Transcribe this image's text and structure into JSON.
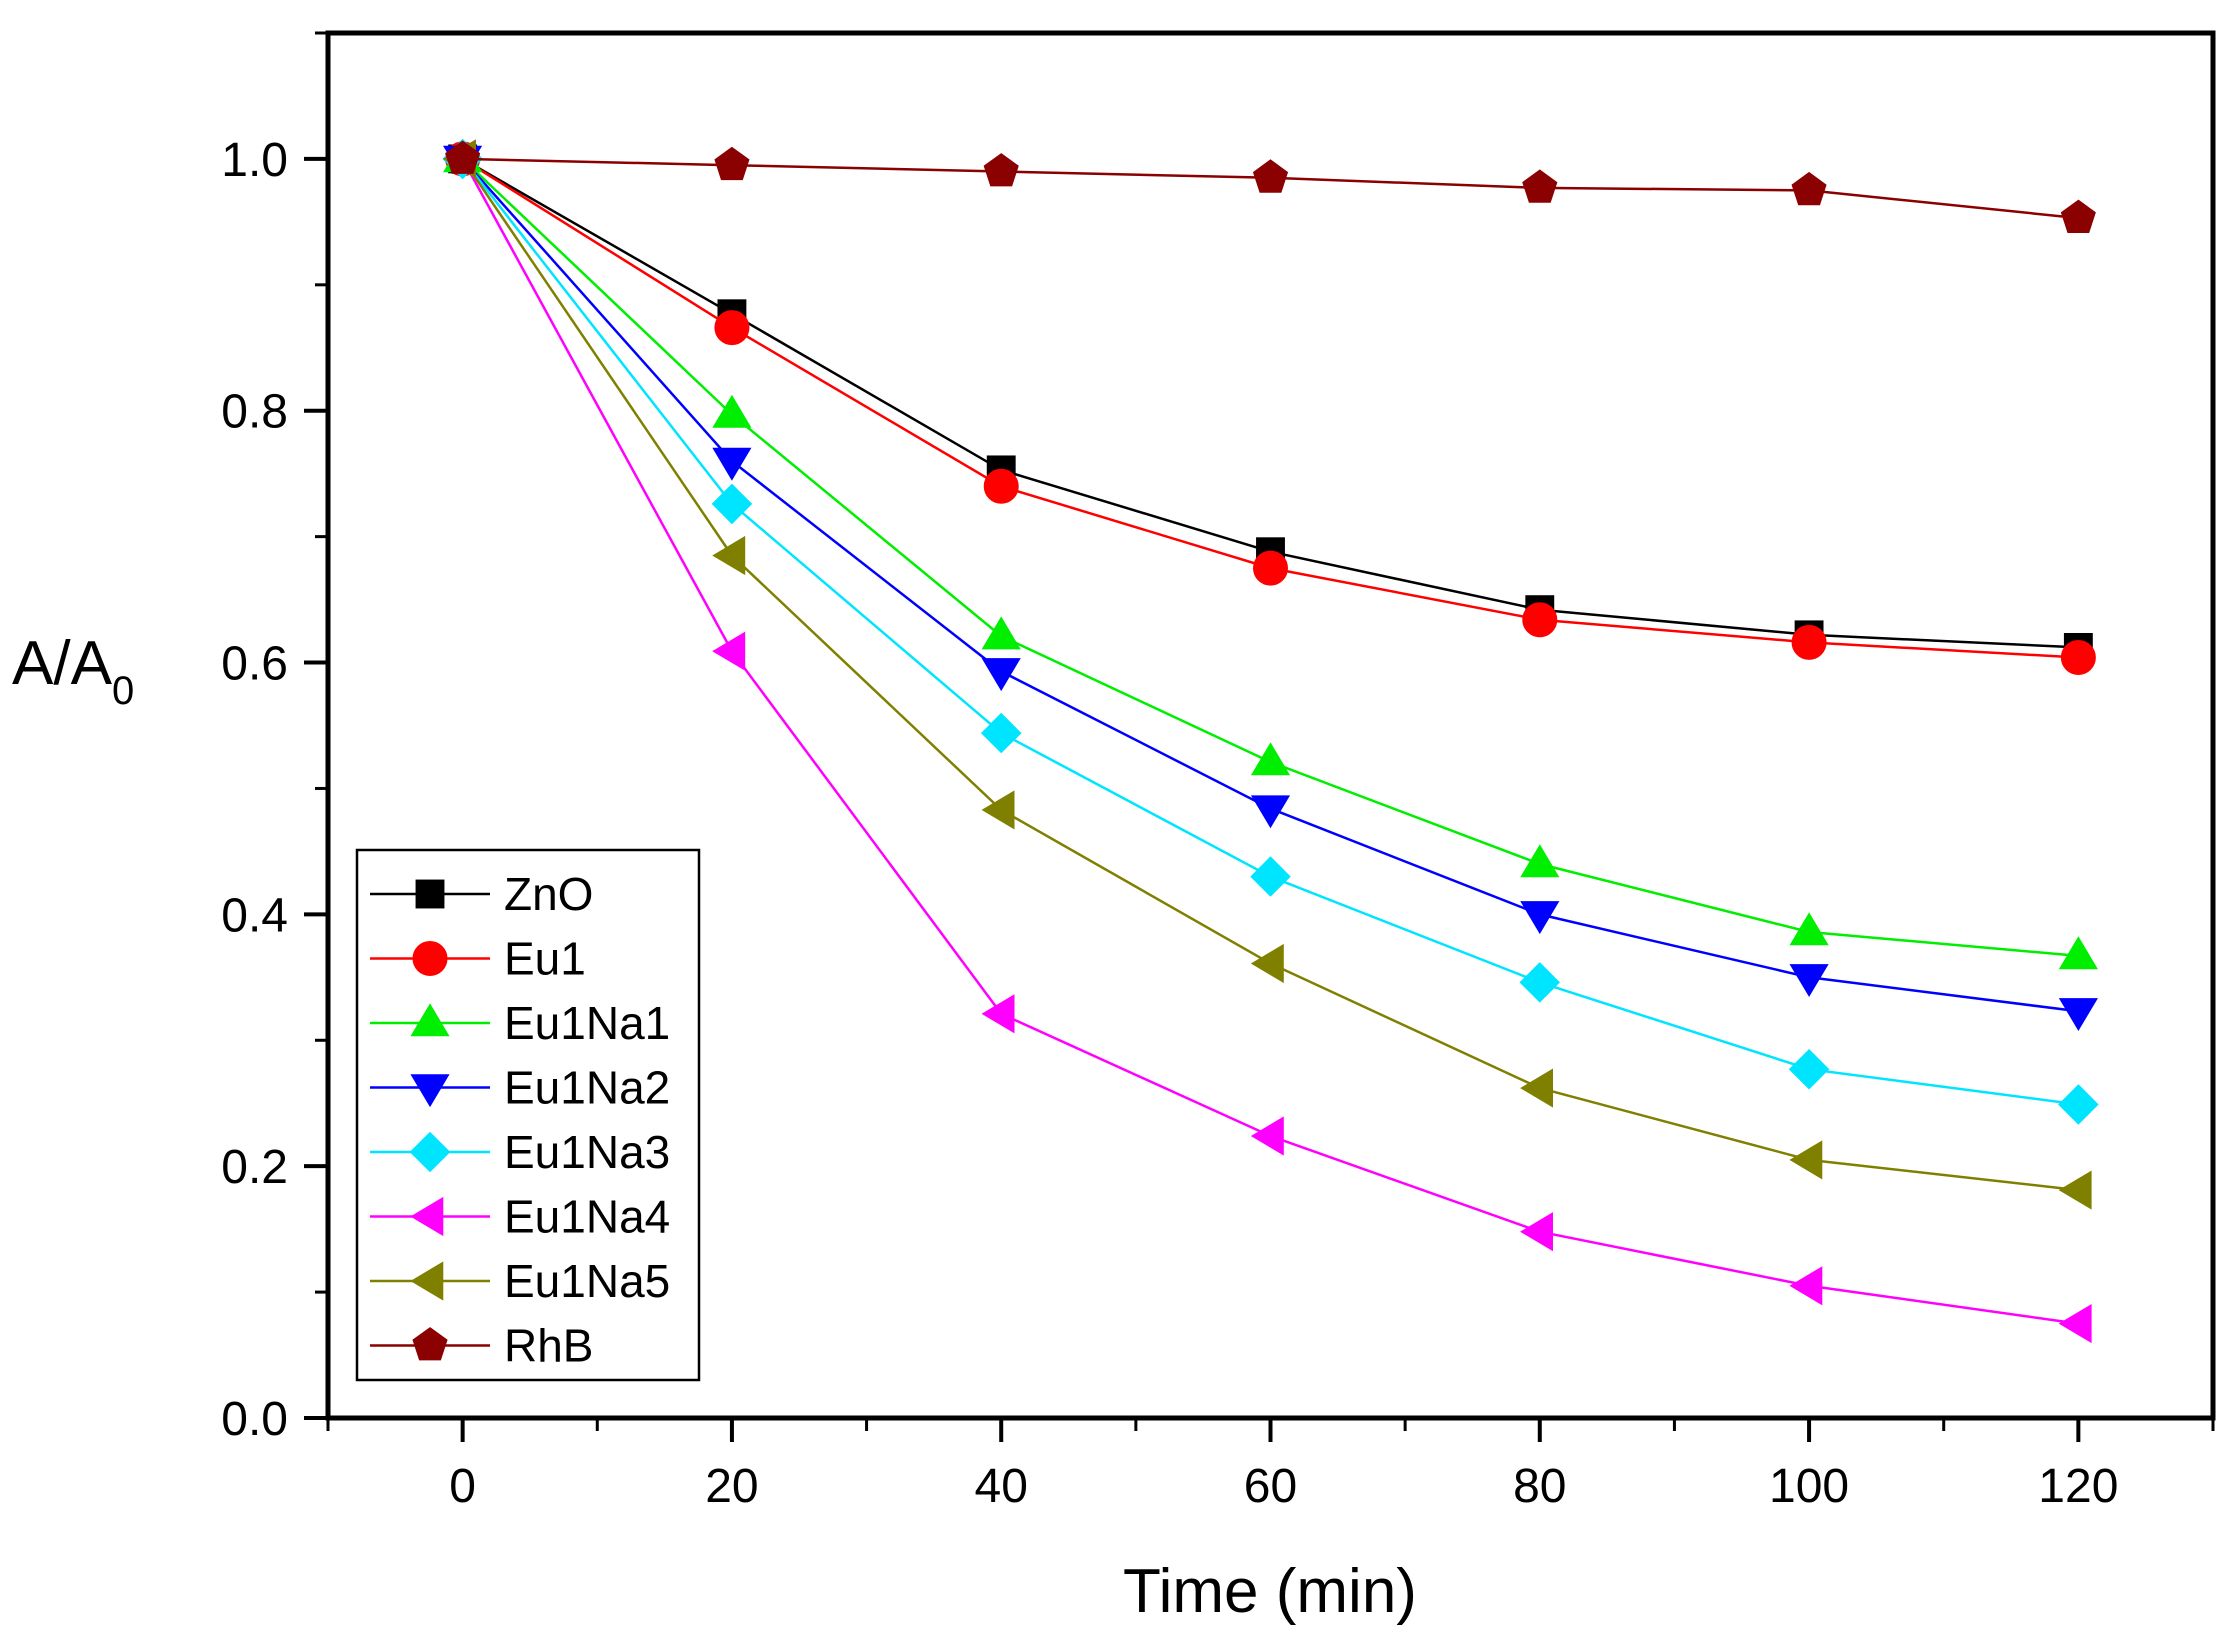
{
  "chart_data": {
    "type": "line",
    "title": "",
    "xlabel": "Time (min)",
    "ylabel_main": "A/A",
    "ylabel_sub": "0",
    "xlim": [
      -10,
      130
    ],
    "ylim": [
      0.0,
      1.1
    ],
    "x_ticks": [
      0,
      20,
      40,
      60,
      80,
      100,
      120
    ],
    "x_tick_labels": [
      "0",
      "20",
      "40",
      "60",
      "80",
      "100",
      "120"
    ],
    "y_ticks": [
      0.0,
      0.2,
      0.4,
      0.6,
      0.8,
      1.0
    ],
    "y_tick_labels": [
      "0.0",
      "0.2",
      "0.4",
      "0.6",
      "0.8",
      "1.0"
    ],
    "grid": false,
    "legend_position": "bottom-left",
    "x": [
      0,
      20,
      40,
      60,
      80,
      100,
      120
    ],
    "series": [
      {
        "name": "ZnO",
        "color": "#000000",
        "marker": "square",
        "values": [
          1.0,
          0.877,
          0.753,
          0.688,
          0.642,
          0.622,
          0.612
        ]
      },
      {
        "name": "Eu1",
        "color": "#ff0000",
        "marker": "circle",
        "values": [
          1.0,
          0.866,
          0.74,
          0.675,
          0.634,
          0.616,
          0.604
        ]
      },
      {
        "name": "Eu1Na1",
        "color": "#00ee00",
        "marker": "triangle-up",
        "values": [
          1.0,
          0.797,
          0.621,
          0.521,
          0.44,
          0.386,
          0.367
        ]
      },
      {
        "name": "Eu1Na2",
        "color": "#0000ff",
        "marker": "triangle-down",
        "values": [
          1.0,
          0.76,
          0.593,
          0.484,
          0.4,
          0.35,
          0.323
        ]
      },
      {
        "name": "Eu1Na3",
        "color": "#00e5ff",
        "marker": "diamond",
        "values": [
          1.0,
          0.726,
          0.544,
          0.43,
          0.346,
          0.277,
          0.249
        ]
      },
      {
        "name": "Eu1Na4",
        "color": "#ff00ff",
        "marker": "triangle-left",
        "values": [
          1.0,
          0.609,
          0.321,
          0.224,
          0.148,
          0.105,
          0.075
        ]
      },
      {
        "name": "Eu1Na5",
        "color": "#808000",
        "marker": "triangle-left",
        "values": [
          1.0,
          0.685,
          0.483,
          0.361,
          0.262,
          0.205,
          0.181
        ]
      },
      {
        "name": "RhB",
        "color": "#8b0000",
        "marker": "pentagon",
        "values": [
          1.0,
          0.995,
          0.99,
          0.985,
          0.977,
          0.975,
          0.953
        ]
      }
    ]
  }
}
